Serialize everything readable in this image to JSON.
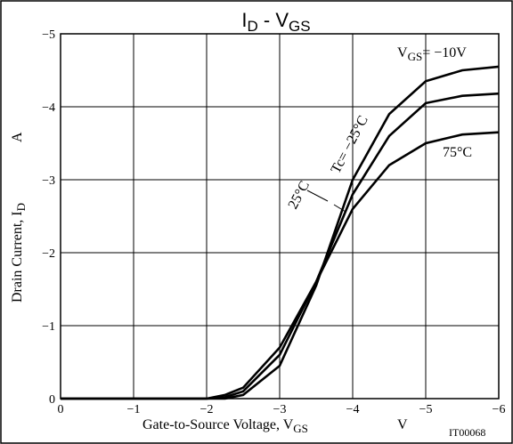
{
  "chart_data": {
    "type": "line",
    "title": {
      "part1": "I",
      "sub1": "D",
      "part2": " - V",
      "sub2": "GS"
    },
    "y_label": {
      "text": "Drain Current, I",
      "sub": "D",
      "unit": "A"
    },
    "x_label": {
      "text": "Gate-to-Source Voltage, V",
      "sub": "GS",
      "unit": "V"
    },
    "annotations": {
      "vgs": {
        "text": "V",
        "sub": "GS",
        "rest": "= −10V"
      },
      "tc_minus25": "Tc= −25°C",
      "tc_25": "25°C",
      "tc_75": "75°C",
      "code": "IT00068"
    },
    "x": [
      0,
      -1,
      -2,
      -2.25,
      -2.5,
      -3,
      -3.5,
      -4,
      -4.5,
      -5,
      -5.5,
      -6
    ],
    "series": [
      {
        "name": "Tc= −25°C",
        "color": "#000000",
        "values": [
          0,
          0,
          0,
          0,
          -0.05,
          -0.45,
          -1.55,
          -3.0,
          -3.9,
          -4.35,
          -4.5,
          -4.55
        ]
      },
      {
        "name": "25°C",
        "color": "#000000",
        "values": [
          0,
          0,
          0,
          -0.02,
          -0.1,
          -0.6,
          -1.6,
          -2.8,
          -3.6,
          -4.05,
          -4.15,
          -4.18
        ]
      },
      {
        "name": "75°C",
        "color": "#000000",
        "values": [
          0,
          0,
          0,
          -0.05,
          -0.15,
          -0.7,
          -1.6,
          -2.6,
          -3.2,
          -3.5,
          -3.62,
          -3.65
        ]
      }
    ],
    "xlim": [
      0,
      -6
    ],
    "ylim": [
      0,
      -5
    ],
    "xticks": [
      0,
      {
        "value": -1,
        "label": "−1"
      },
      {
        "value": -2,
        "label": "−2"
      },
      {
        "value": -3,
        "label": "−3"
      },
      {
        "value": -4,
        "label": "−4"
      },
      {
        "value": -5,
        "label": "−5"
      },
      {
        "value": -6,
        "label": "−6"
      }
    ],
    "yticks": [
      0,
      {
        "value": -1,
        "label": "−1"
      },
      {
        "value": -2,
        "label": "−2"
      },
      {
        "value": -3,
        "label": "−3"
      },
      {
        "value": -4,
        "label": "−4"
      },
      {
        "value": -5,
        "label": "−5"
      }
    ],
    "grid": true
  }
}
